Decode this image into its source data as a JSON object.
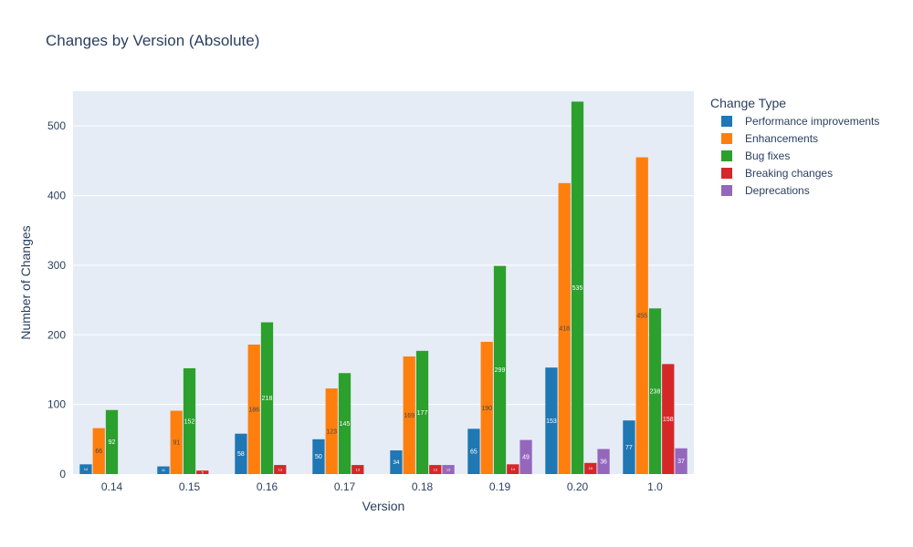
{
  "chart_data": {
    "type": "bar",
    "title": "Changes by Version (Absolute)",
    "xlabel": "Version",
    "ylabel": "Number of Changes",
    "ylim": [
      0,
      550
    ],
    "yticks": [
      0,
      100,
      200,
      300,
      400,
      500
    ],
    "categories": [
      "0.14",
      "0.15",
      "0.16",
      "0.17",
      "0.18",
      "0.19",
      "0.20",
      "1.0"
    ],
    "legend_title": "Change Type",
    "legend_position": "right",
    "grid": true,
    "plot_bg": "#e5ecf6",
    "series": [
      {
        "name": "Performance improvements",
        "color": "#1f77b4",
        "values": [
          14,
          11,
          58,
          50,
          34,
          65,
          153,
          77
        ],
        "labels": [
          "14",
          "11",
          "58",
          "50",
          "34",
          "65",
          "153",
          "77"
        ]
      },
      {
        "name": "Enhancements",
        "color": "#ff7f0e",
        "values": [
          66,
          91,
          186,
          123,
          169,
          190,
          418,
          455
        ],
        "labels": [
          "66",
          "91",
          "186",
          "123",
          "169",
          "190",
          "418",
          "455"
        ]
      },
      {
        "name": "Bug fixes",
        "color": "#2ca02c",
        "values": [
          92,
          152,
          218,
          145,
          177,
          299,
          535,
          238
        ],
        "labels": [
          "92",
          "152",
          "218",
          "145",
          "177",
          "299",
          "535",
          "238"
        ]
      },
      {
        "name": "Breaking changes",
        "color": "#d62728",
        "values": [
          0,
          5,
          13,
          13,
          13,
          14,
          16,
          158
        ],
        "labels": [
          "",
          "5",
          "13",
          "13",
          "13",
          "14",
          "16",
          "158"
        ]
      },
      {
        "name": "Deprecations",
        "color": "#9467bd",
        "values": [
          0,
          0,
          0,
          0,
          13,
          49,
          36,
          37
        ],
        "labels": [
          "",
          "",
          "",
          "",
          "13",
          "49",
          "36",
          "37"
        ]
      }
    ]
  }
}
